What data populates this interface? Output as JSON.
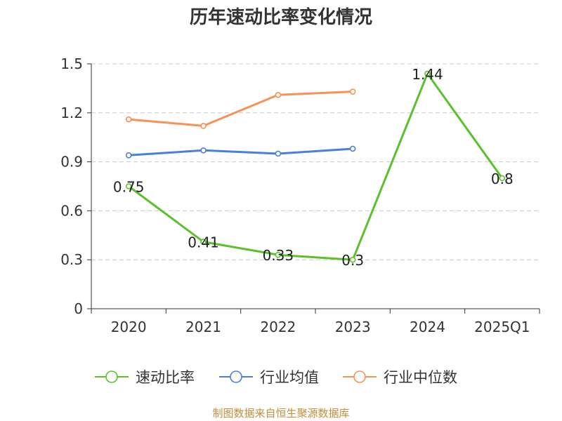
{
  "source": "制图数据来自恒生聚源数据库",
  "chart_data": {
    "type": "line",
    "title": "历年速动比率变化情况",
    "categories": [
      "2020",
      "2021",
      "2022",
      "2023",
      "2024",
      "2025Q1"
    ],
    "ylim": [
      0,
      1.5
    ],
    "yticks": [
      "0",
      "0.3",
      "0.6",
      "0.9",
      "1.2",
      "1.5"
    ],
    "grid": true,
    "legend_position": "bottom",
    "series": [
      {
        "name": "速动比率",
        "color": "#5ac12a",
        "values": [
          0.75,
          0.41,
          0.33,
          0.3,
          1.44,
          0.8
        ],
        "labels": [
          "0.75",
          "0.41",
          "0.33",
          "0.3",
          "1.44",
          "0.8"
        ]
      },
      {
        "name": "行业均值",
        "color": "#4a7fdc",
        "values": [
          0.94,
          0.97,
          0.95,
          0.98,
          null,
          null
        ]
      },
      {
        "name": "行业中位数",
        "color": "#f79155",
        "values": [
          1.16,
          1.12,
          1.31,
          1.33,
          null,
          null
        ]
      }
    ]
  }
}
